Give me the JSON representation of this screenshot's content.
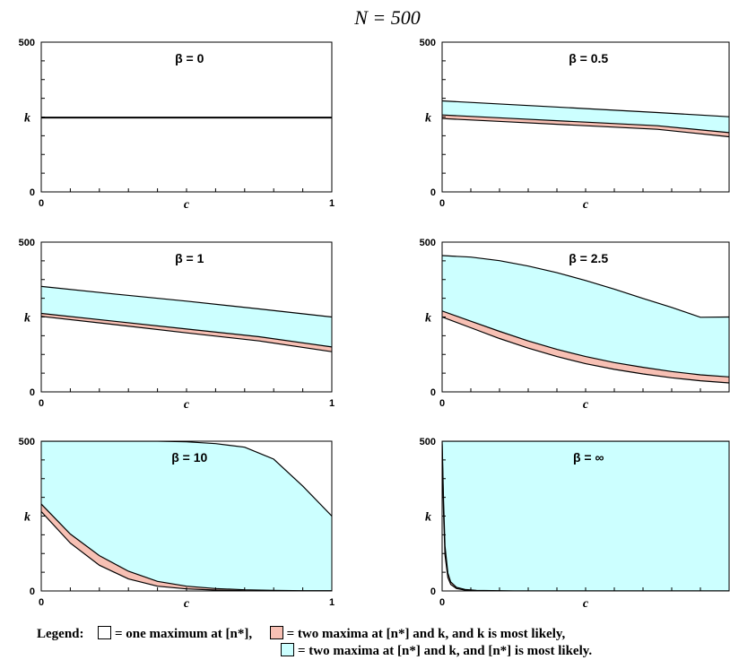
{
  "figure": {
    "title": "N = 500"
  },
  "legend": {
    "lead": "Legend:",
    "items": [
      {
        "color": "#ffffff",
        "text": "= one maximum at [n*],"
      },
      {
        "color": "#f7c0b4",
        "text": "= two maxima at [n*] and k, and k is most likely,"
      },
      {
        "color": "#ccffff",
        "text": "= two maxima at [n*] and k, and [n*] is most likely."
      }
    ]
  },
  "colors": {
    "cyan": "#ccffff",
    "pink": "#f7c0b4",
    "white": "#ffffff",
    "line": "#000000"
  },
  "chart_data": [
    {
      "type": "area",
      "label": "β = 0",
      "xlabel": "c",
      "ylabel": "k",
      "xlim": [
        0,
        1
      ],
      "ylim": [
        0,
        500
      ],
      "xticks": [
        "0",
        "1"
      ],
      "yticks": [
        "0",
        "500"
      ],
      "x": [
        0,
        0.25,
        0.5,
        0.75,
        1
      ],
      "cyan_top": [
        249,
        249,
        249,
        249,
        249
      ],
      "pink_top": [
        249,
        249,
        249,
        249,
        249
      ],
      "pink_bottom": [
        247,
        247,
        247,
        247,
        247
      ]
    },
    {
      "type": "area",
      "label": "β = 0.5",
      "xlabel": "c",
      "ylabel": "k",
      "xlim": [
        0,
        1
      ],
      "ylim": [
        0,
        500
      ],
      "xticks": [
        "0"
      ],
      "yticks": [
        "0",
        "500"
      ],
      "x": [
        0,
        0.25,
        0.5,
        0.75,
        1
      ],
      "cyan_top": [
        304,
        291,
        278,
        265,
        251
      ],
      "pink_top": [
        257,
        245,
        233,
        221,
        198
      ],
      "pink_bottom": [
        245,
        233,
        221,
        209,
        184
      ]
    },
    {
      "type": "area",
      "label": "β = 1",
      "xlabel": "c",
      "ylabel": "k",
      "xlim": [
        0,
        1
      ],
      "ylim": [
        0,
        500
      ],
      "xticks": [
        "0",
        "1"
      ],
      "yticks": [
        "0",
        "500"
      ],
      "x": [
        0,
        0.25,
        0.5,
        0.75,
        1
      ],
      "cyan_top": [
        352,
        327,
        303,
        277,
        250
      ],
      "pink_top": [
        262,
        236,
        210,
        184,
        150
      ],
      "pink_bottom": [
        252,
        225,
        197,
        170,
        134
      ]
    },
    {
      "type": "area",
      "label": "β = 2.5",
      "xlabel": "c",
      "ylabel": "k",
      "xlim": [
        0,
        1
      ],
      "ylim": [
        0,
        500
      ],
      "xticks": [
        "0"
      ],
      "yticks": [
        "0",
        "500"
      ],
      "x": [
        0,
        0.1,
        0.2,
        0.3,
        0.4,
        0.5,
        0.6,
        0.7,
        0.8,
        0.9,
        1
      ],
      "cyan_top": [
        455,
        450,
        438,
        420,
        398,
        372,
        343,
        312,
        282,
        249,
        250
      ],
      "pink_top": [
        270,
        236,
        202,
        170,
        142,
        118,
        98,
        82,
        68,
        57,
        50
      ],
      "pink_bottom": [
        250,
        214,
        178,
        146,
        118,
        94,
        75,
        60,
        47,
        37,
        30
      ]
    },
    {
      "type": "area",
      "label": "β = 10",
      "xlabel": "c",
      "ylabel": "k",
      "xlim": [
        0,
        1
      ],
      "ylim": [
        0,
        500
      ],
      "xticks": [
        "0",
        "1"
      ],
      "yticks": [
        "0",
        "500"
      ],
      "x": [
        0,
        0.1,
        0.2,
        0.3,
        0.4,
        0.5,
        0.6,
        0.7,
        0.8,
        0.9,
        1
      ],
      "cyan_top": [
        500,
        500,
        500,
        500,
        500,
        498,
        492,
        480,
        440,
        350,
        250
      ],
      "pink_top": [
        290,
        190,
        118,
        66,
        32,
        16,
        8,
        4,
        2,
        1,
        1
      ],
      "pink_bottom": [
        265,
        160,
        86,
        40,
        16,
        7,
        3,
        1,
        0,
        0,
        0
      ]
    },
    {
      "type": "area",
      "label": "β = ∞",
      "xlabel": "c",
      "ylabel": "k",
      "xlim": [
        0,
        1
      ],
      "ylim": [
        0,
        500
      ],
      "xticks": [
        "0"
      ],
      "yticks": [
        "0",
        "500"
      ],
      "x": [
        0,
        0.005,
        0.01,
        0.02,
        0.03,
        0.05,
        0.08,
        0.12,
        0.2,
        0.25,
        1
      ],
      "cyan_top": [
        500,
        500,
        500,
        500,
        500,
        500,
        500,
        500,
        500,
        500,
        500
      ],
      "pink_top": [
        500,
        300,
        150,
        60,
        30,
        12,
        5,
        2,
        1,
        0,
        0
      ],
      "pink_bottom": [
        490,
        260,
        120,
        45,
        22,
        8,
        3,
        1,
        0,
        0,
        0
      ]
    }
  ]
}
